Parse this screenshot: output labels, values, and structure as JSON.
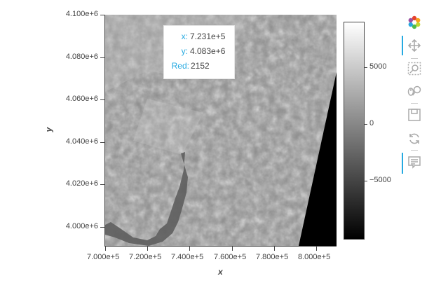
{
  "plot": {
    "x_axis_label": "x",
    "y_axis_label": "y",
    "x_ticks": [
      "7.000e+5",
      "7.200e+5",
      "7.400e+5",
      "7.600e+5",
      "7.800e+5",
      "8.000e+5"
    ],
    "y_ticks": [
      "4.100e+6",
      "4.080e+6",
      "4.060e+6",
      "4.040e+6",
      "4.020e+6",
      "4.000e+6"
    ]
  },
  "colorbar": {
    "ticks": [
      "5000",
      "0",
      "−5000"
    ]
  },
  "tooltip": {
    "x_key": "x:",
    "x_value": "7.231e+5",
    "y_key": "y:",
    "y_value": "4.083e+6",
    "red_key": "Red:",
    "red_value": "2152"
  },
  "toolbar": {
    "items": [
      {
        "name": "bokeh-logo-icon"
      },
      {
        "name": "pan-icon",
        "active": true
      },
      {
        "name": "box-zoom-icon"
      },
      {
        "name": "wheel-zoom-icon"
      },
      {
        "name": "save-icon"
      },
      {
        "name": "reset-icon"
      },
      {
        "name": "hover-icon",
        "active": true
      }
    ]
  },
  "colors": {
    "accent": "#26aae1",
    "text": "#444444",
    "nodata": "#000000"
  }
}
